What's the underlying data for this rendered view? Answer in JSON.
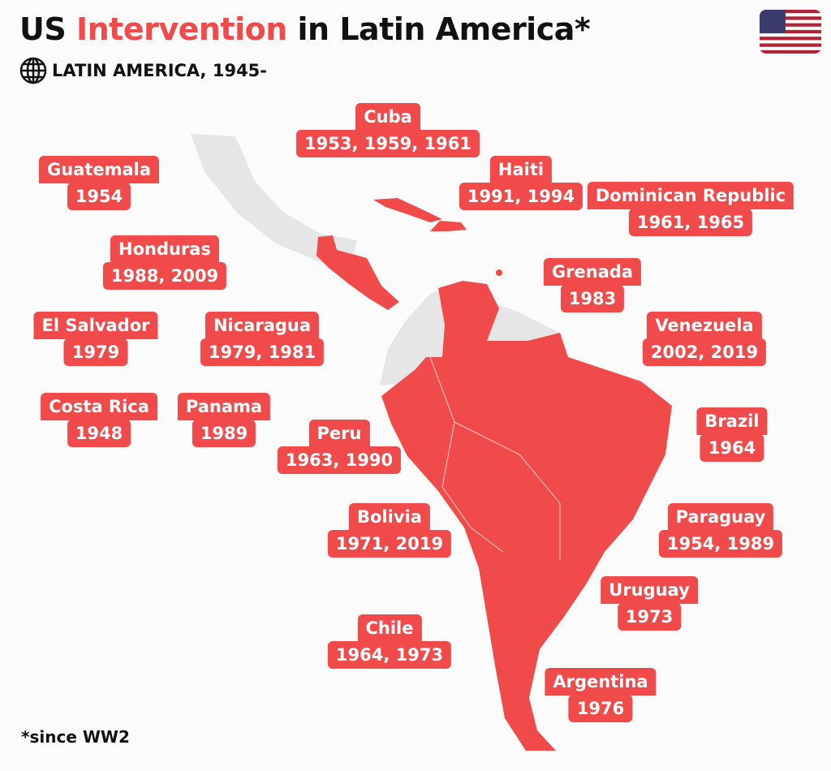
{
  "title": {
    "prefix": "US ",
    "accent": "Intervention",
    "suffix": " in Latin America*"
  },
  "subtitle": "LATIN AMERICA, 1945-",
  "footnote": "*since WW2",
  "colors": {
    "accent": "#f04a4a",
    "land": "#e6e6e6",
    "text": "#111111"
  },
  "icons": {
    "subtitle": "globe-icon",
    "corner": "us-flag-icon"
  },
  "labels": [
    {
      "name": "Cuba",
      "years": "1953, 1959, 1961"
    },
    {
      "name": "Guatemala",
      "years": "1954"
    },
    {
      "name": "Haiti",
      "years": "1991, 1994"
    },
    {
      "name": "Dominican Republic",
      "years": "1961, 1965"
    },
    {
      "name": "Honduras",
      "years": "1988, 2009"
    },
    {
      "name": "Grenada",
      "years": "1983"
    },
    {
      "name": "El Salvador",
      "years": "1979"
    },
    {
      "name": "Nicaragua",
      "years": "1979, 1981"
    },
    {
      "name": "Venezuela",
      "years": "2002, 2019"
    },
    {
      "name": "Costa Rica",
      "years": "1948"
    },
    {
      "name": "Panama",
      "years": "1989"
    },
    {
      "name": "Peru",
      "years": "1963, 1990"
    },
    {
      "name": "Brazil",
      "years": "1964"
    },
    {
      "name": "Bolivia",
      "years": "1971, 2019"
    },
    {
      "name": "Paraguay",
      "years": "1954, 1989"
    },
    {
      "name": "Uruguay",
      "years": "1973"
    },
    {
      "name": "Chile",
      "years": "1964, 1973"
    },
    {
      "name": "Argentina",
      "years": "1976"
    }
  ]
}
